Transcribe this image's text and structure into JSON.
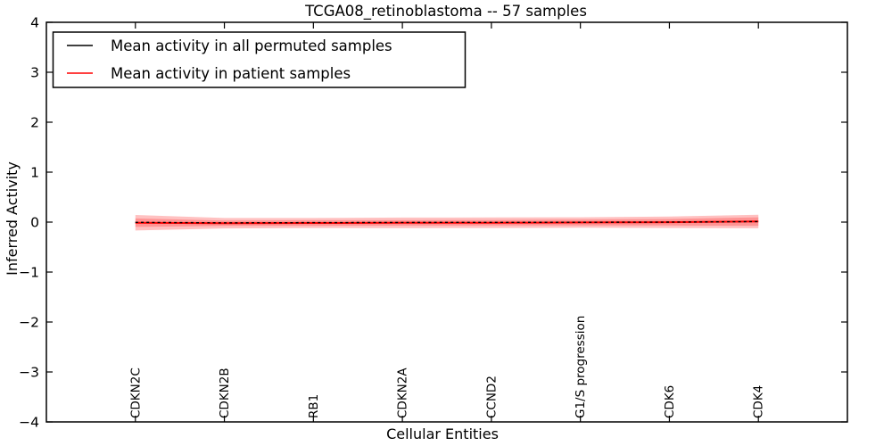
{
  "chart_data": {
    "type": "line",
    "title": "TCGA08_retinoblastoma -- 57 samples",
    "xlabel": "Cellular Entities",
    "ylabel": "Inferred Activity",
    "ylim": [
      -4,
      4
    ],
    "ytick_labels": [
      "4",
      "3",
      "2",
      "1",
      "0",
      "−1",
      "−2",
      "−3",
      "−4"
    ],
    "ytick_values": [
      4,
      3,
      2,
      1,
      0,
      -1,
      -2,
      -3,
      -4
    ],
    "grid": false,
    "legend_position": "upper left",
    "categories": [
      "CDKN2C",
      "CDKN2B",
      "RB1",
      "CDKN2A",
      "CCND2",
      "G1/S progression",
      "CDK6",
      "CDK4"
    ],
    "series": [
      {
        "name": "Mean activity in all permuted samples",
        "color": "#000000",
        "style": "dashed",
        "values": [
          -0.005,
          -0.015,
          -0.01,
          -0.008,
          -0.006,
          -0.004,
          0.0,
          0.01
        ]
      },
      {
        "name": "Mean activity in patient samples",
        "color": "#ff0000",
        "style": "solid",
        "values": [
          -0.012,
          -0.022,
          -0.018,
          -0.014,
          -0.012,
          -0.008,
          -0.002,
          0.012
        ],
        "band_outer_halfwidth": [
          0.155,
          0.105,
          0.1,
          0.105,
          0.105,
          0.105,
          0.115,
          0.135
        ],
        "band_inner_halfwidth": [
          0.085,
          0.055,
          0.055,
          0.055,
          0.055,
          0.06,
          0.065,
          0.085
        ],
        "band_color": "#ff2020",
        "band_opacity": 0.28
      }
    ]
  }
}
